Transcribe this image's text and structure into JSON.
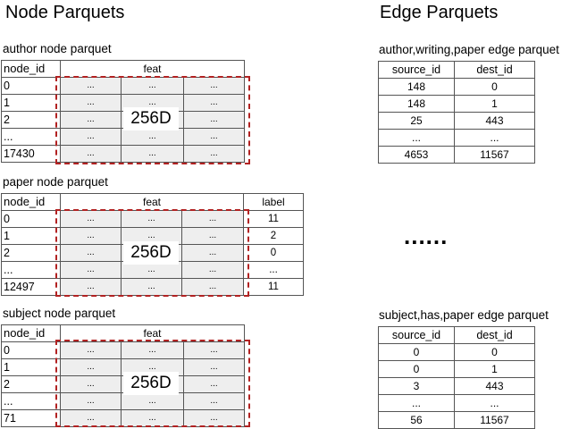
{
  "titles": {
    "node": "Node Parquets",
    "edge": "Edge Parquets"
  },
  "node_tables": [
    {
      "caption": "author node parquet",
      "id_header": "node_id",
      "feat_header": "feat",
      "ids": [
        "0",
        "1",
        "2",
        "...",
        "17430"
      ],
      "feat_cell": "...",
      "dim_label": "256D"
    },
    {
      "caption": "paper node parquet",
      "id_header": "node_id",
      "feat_header": "feat",
      "label_header": "label",
      "ids": [
        "0",
        "1",
        "2",
        "...",
        "12497"
      ],
      "labels": [
        "11",
        "2",
        "0",
        "...",
        "11"
      ],
      "feat_cell": "...",
      "dim_label": "256D"
    },
    {
      "caption": "subject node parquet",
      "id_header": "node_id",
      "feat_header": "feat",
      "ids": [
        "0",
        "1",
        "2",
        "...",
        "71"
      ],
      "feat_cell": "...",
      "dim_label": "256D"
    }
  ],
  "edge_tables": [
    {
      "caption": "author,writing,paper edge parquet",
      "headers": [
        "source_id",
        "dest_id"
      ],
      "rows": [
        [
          "148",
          "0"
        ],
        [
          "148",
          "1"
        ],
        [
          "25",
          "443"
        ],
        [
          "...",
          "..."
        ],
        [
          "4653",
          "11567"
        ]
      ]
    },
    {
      "caption": "subject,has,paper edge parquet",
      "headers": [
        "source_id",
        "dest_id"
      ],
      "rows": [
        [
          "0",
          "0"
        ],
        [
          "0",
          "1"
        ],
        [
          "3",
          "443"
        ],
        [
          "...",
          "..."
        ],
        [
          "56",
          "11567"
        ]
      ]
    }
  ],
  "more_edges": "......",
  "colors": {
    "dash": "#b22222",
    "feat_fill": "#eeeeee",
    "border": "#555555"
  }
}
